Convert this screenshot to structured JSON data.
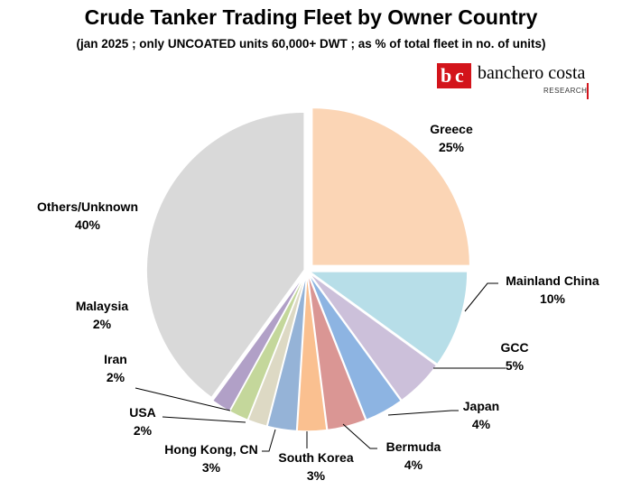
{
  "chart_data": {
    "type": "pie",
    "title": "Crude Tanker Trading Fleet by Owner Country",
    "subtitle": "(jan 2025 ; only UNCOATED units 60,000+ DWT ; as % of total fleet in no. of units)",
    "slices": [
      {
        "label": "Greece",
        "value": 25,
        "value_label": "25%",
        "color": "#fbd5b5"
      },
      {
        "label": "Mainland China",
        "value": 10,
        "value_label": "10%",
        "color": "#b7dee8"
      },
      {
        "label": "GCC",
        "value": 5,
        "value_label": "5%",
        "color": "#ccc0da"
      },
      {
        "label": "Japan",
        "value": 4,
        "value_label": "4%",
        "color": "#8db4e2"
      },
      {
        "label": "Bermuda",
        "value": 4,
        "value_label": "4%",
        "color": "#da9694"
      },
      {
        "label": "South Korea",
        "value": 3,
        "value_label": "3%",
        "color": "#fac090"
      },
      {
        "label": "Hong Kong, CN",
        "value": 3,
        "value_label": "3%",
        "color": "#95b3d7"
      },
      {
        "label": "USA",
        "value": 2,
        "value_label": "2%",
        "color": "#ddd9c4"
      },
      {
        "label": "Iran",
        "value": 2,
        "value_label": "2%",
        "color": "#c4d79b"
      },
      {
        "label": "Malaysia",
        "value": 2,
        "value_label": "2%",
        "color": "#b1a0c7"
      },
      {
        "label": "Others/Unknown",
        "value": 40,
        "value_label": "40%",
        "color": "#d9d9d9"
      }
    ],
    "exploded": true,
    "legend": "none"
  },
  "logo": {
    "name": "banchero costa",
    "sub": "RESEARCH",
    "mark": "bc"
  }
}
